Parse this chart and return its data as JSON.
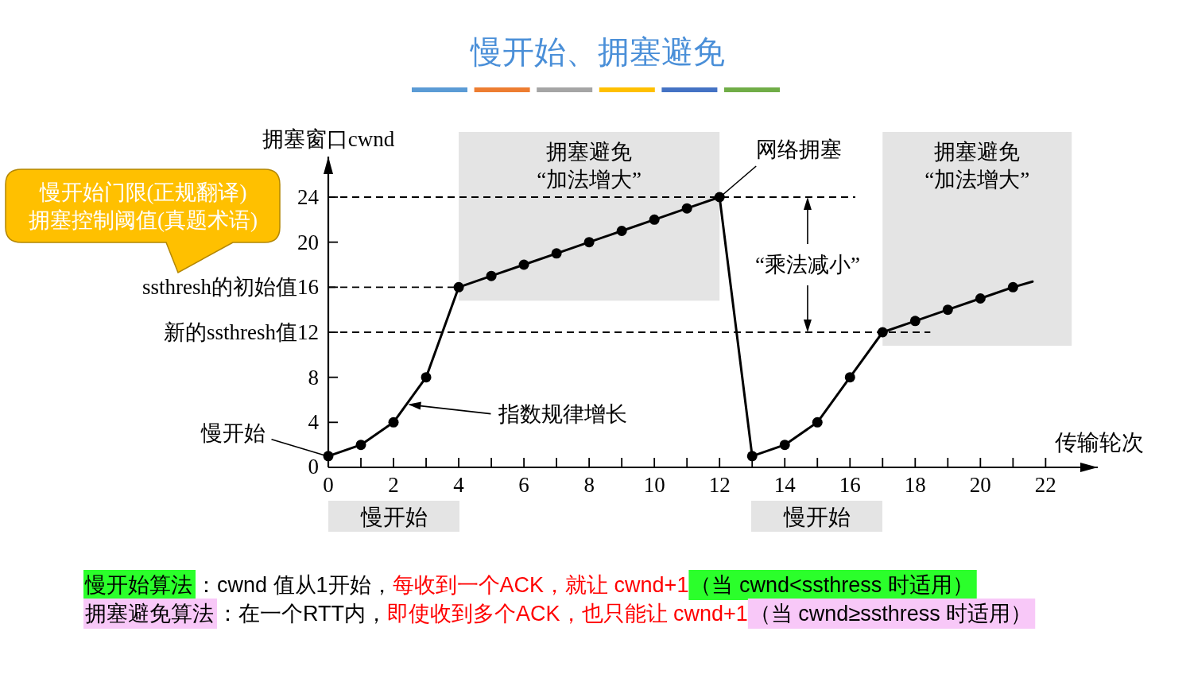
{
  "chart_data": {
    "type": "line",
    "title": "慢开始、拥塞避免",
    "xlabel": "传输轮次",
    "ylabel": "拥塞窗口cwnd",
    "xlim": [
      0,
      23.6
    ],
    "ylim": [
      0,
      27.6
    ],
    "xticks": [
      0,
      {
        "value": 1,
        "label": null
      },
      2,
      {
        "value": 3,
        "label": null
      },
      4,
      {
        "value": 5,
        "label": null
      },
      6,
      {
        "value": 7,
        "label": null
      },
      8,
      {
        "value": 9,
        "label": null
      },
      10,
      {
        "value": 11,
        "label": null
      },
      12,
      {
        "value": 13,
        "label": null
      },
      14,
      {
        "value": 15,
        "label": null
      },
      16,
      {
        "value": 17,
        "label": null
      },
      18,
      {
        "value": 19,
        "label": null
      },
      20,
      {
        "value": 21,
        "label": null
      },
      22
    ],
    "yticks": [
      0,
      4,
      8,
      {
        "value": 12,
        "label": "新的ssthresh值12"
      },
      {
        "value": 16,
        "label": "ssthresh的初始值16"
      },
      20,
      24
    ],
    "marker": "circle",
    "line_style": "solid",
    "series": [
      {
        "color": "#000000",
        "x": [
          0,
          1,
          2,
          3,
          4,
          5,
          6,
          7,
          8,
          9,
          10,
          11,
          12,
          13,
          14,
          15,
          16,
          17,
          18,
          19,
          20,
          21
        ],
        "values": [
          1,
          2,
          4,
          8,
          16,
          17,
          18,
          19,
          20,
          21,
          22,
          23,
          24,
          1,
          2,
          4,
          8,
          12,
          13,
          14,
          15,
          16
        ]
      },
      {
        "color": "#000000",
        "marker": "none",
        "x": [
          21,
          21.6
        ],
        "values": [
          16,
          16.5
        ]
      }
    ],
    "ref_lines": [
      {
        "axis": "y",
        "value": 24,
        "color": "#000000",
        "line_style": "dashed"
      },
      {
        "axis": "y",
        "value": 16,
        "color": "#000000",
        "line_style": "dashed"
      },
      {
        "axis": "y",
        "value": 12,
        "color": "#000000",
        "line_style": "dashed"
      }
    ],
    "bands": [
      {
        "axis": "x",
        "from": 4,
        "to": 12,
        "label": "拥塞避免\n“加法增大”",
        "color": "#e4e4e4"
      },
      {
        "axis": "x",
        "from": 17,
        "to": 22.8,
        "label": "拥塞避免\n“加法增大”",
        "color": "#e4e4e4"
      }
    ],
    "annotations": [
      "慢开始门限(正规翻译)\n拥塞控制阈值(真题术语)",
      {
        "text": "慢开始",
        "x": 0,
        "y": 1
      },
      {
        "text": "指数规律增长",
        "x": 2.4,
        "y": 5.6
      },
      {
        "text": "网络拥塞",
        "x": 12,
        "y": 24
      },
      {
        "text": "“乘法减小”",
        "x": 14.7,
        "y": 24
      },
      "慢开始",
      "慢开始",
      "慢开始算法",
      "：cwnd 值从1开始，",
      "每收到一个ACK，就让 cwnd+1",
      "（当 cwnd<ssthress 时适用）",
      "拥塞避免算法",
      "：在一个RTT内，",
      "即使收到多个ACK，也只能让 cwnd+1",
      "（当 cwnd≥ssthress 时适用）"
    ]
  }
}
